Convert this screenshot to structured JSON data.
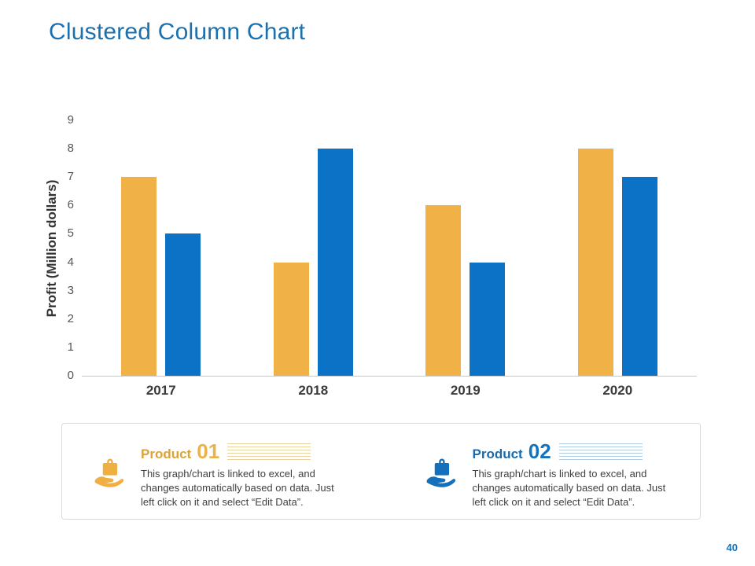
{
  "page": {
    "title": "Clustered Column Chart",
    "page_number": "40",
    "accent_blue": "#1C70AE"
  },
  "chart_data": {
    "type": "bar",
    "title": "Clustered Column Chart",
    "categories": [
      "2017",
      "2018",
      "2019",
      "2020"
    ],
    "series": [
      {
        "name": "Product 01",
        "color": "#F0B246",
        "values": [
          7,
          4,
          6,
          8
        ]
      },
      {
        "name": "Product 02",
        "color": "#0B72C6",
        "values": [
          5,
          8,
          4,
          7
        ]
      }
    ],
    "xlabel": "",
    "ylabel": "Profit  (Million dollars)",
    "ylim": [
      0,
      9
    ],
    "ytick_step": 1,
    "grid": false,
    "legend_position": "bottom"
  },
  "legend": {
    "items": [
      {
        "icon": "bag-in-hand-icon",
        "color": "#DCA239",
        "number_color": "#ECB24A",
        "stripe_color": "#E7D2A0",
        "title_word": "Product",
        "title_number": "01",
        "description": "This graph/chart is linked to excel, and changes automatically based on data. Just left click on it and select “Edit Data”."
      },
      {
        "icon": "bag-in-hand-icon",
        "color": "#1A6BAE",
        "number_color": "#1473BE",
        "stripe_color": "#AECBE2",
        "title_word": "Product",
        "title_number": "02",
        "description": "This graph/chart is linked to excel, and changes automatically based on data. Just left click on it and select “Edit Data”."
      }
    ]
  }
}
